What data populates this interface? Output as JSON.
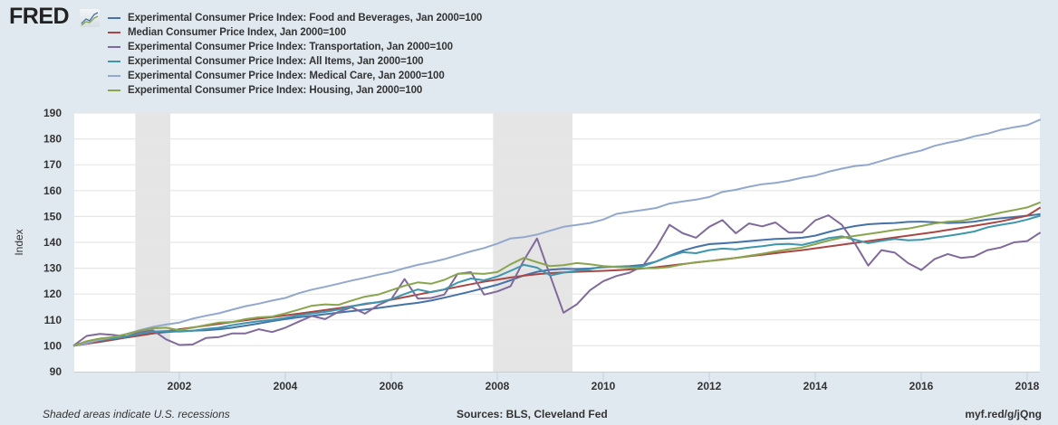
{
  "brand": {
    "logo_text": "FRED",
    "logo_icon": "line-chart-icon"
  },
  "footer": {
    "note": "Shaded areas indicate U.S. recessions",
    "sources": "Sources: BLS, Cleveland Fed",
    "short_url": "myf.red/g/jQng"
  },
  "chart_data": {
    "type": "line",
    "title": "",
    "xlabel": "",
    "ylabel": "Index",
    "xlim": [
      2000.0,
      2018.25
    ],
    "ylim": [
      90,
      190
    ],
    "x_ticks": [
      2002,
      2004,
      2006,
      2008,
      2010,
      2012,
      2014,
      2016,
      2018
    ],
    "y_ticks": [
      90,
      100,
      110,
      120,
      130,
      140,
      150,
      160,
      170,
      180,
      190
    ],
    "grid": true,
    "legend": "top-left",
    "recessions": [
      [
        2001.17,
        2001.83
      ],
      [
        2007.92,
        2009.42
      ]
    ],
    "x": [
      2000.0,
      2000.25,
      2000.5,
      2000.75,
      2001.0,
      2001.25,
      2001.5,
      2001.75,
      2002.0,
      2002.25,
      2002.5,
      2002.75,
      2003.0,
      2003.25,
      2003.5,
      2003.75,
      2004.0,
      2004.25,
      2004.5,
      2004.75,
      2005.0,
      2005.25,
      2005.5,
      2005.75,
      2006.0,
      2006.25,
      2006.5,
      2006.75,
      2007.0,
      2007.25,
      2007.5,
      2007.75,
      2008.0,
      2008.25,
      2008.5,
      2008.75,
      2009.0,
      2009.25,
      2009.5,
      2009.75,
      2010.0,
      2010.25,
      2010.5,
      2010.75,
      2011.0,
      2011.25,
      2011.5,
      2011.75,
      2012.0,
      2012.25,
      2012.5,
      2012.75,
      2013.0,
      2013.25,
      2013.5,
      2013.75,
      2014.0,
      2014.25,
      2014.5,
      2014.75,
      2015.0,
      2015.25,
      2015.5,
      2015.75,
      2016.0,
      2016.25,
      2016.5,
      2016.75,
      2017.0,
      2017.25,
      2017.5,
      2017.75,
      2018.0,
      2018.25
    ],
    "series": [
      {
        "name": "Experimental Consumer Price Index: Food and Beverages, Jan 2000=100",
        "color": "#4572a7",
        "values": [
          100,
          100.8,
          101.5,
          102.3,
          103.2,
          104.0,
          104.8,
          105.3,
          105.6,
          105.8,
          106.0,
          106.4,
          107.0,
          107.8,
          108.6,
          109.5,
          110.3,
          111.0,
          111.6,
          112.2,
          112.8,
          113.4,
          114.0,
          114.6,
          115.3,
          116.0,
          116.6,
          117.5,
          118.6,
          119.8,
          121.0,
          122.3,
          123.6,
          125.3,
          127.2,
          128.6,
          129.4,
          129.8,
          129.7,
          129.9,
          130.4,
          130.6,
          130.8,
          131.3,
          132.6,
          134.8,
          136.8,
          138.2,
          139.3,
          139.6,
          140.0,
          140.5,
          140.9,
          141.3,
          141.5,
          141.8,
          142.6,
          144.0,
          145.3,
          146.3,
          147.0,
          147.3,
          147.5,
          147.9,
          148.0,
          147.8,
          147.5,
          147.6,
          148.0,
          148.8,
          149.3,
          149.8,
          150.3,
          150.9
        ]
      },
      {
        "name": "Median Consumer Price Index, Jan 2000=100",
        "color": "#aa4643",
        "values": [
          100,
          100.8,
          101.6,
          102.4,
          103.2,
          104.0,
          104.8,
          105.6,
          106.4,
          107.1,
          107.8,
          108.5,
          109.2,
          109.9,
          110.5,
          111.1,
          111.8,
          112.4,
          113.1,
          113.8,
          114.5,
          115.3,
          116.1,
          116.9,
          117.8,
          118.8,
          119.8,
          120.8,
          121.8,
          122.8,
          123.8,
          124.8,
          125.6,
          126.4,
          127.1,
          127.7,
          128.1,
          128.4,
          128.6,
          128.8,
          129.0,
          129.2,
          129.5,
          129.9,
          130.4,
          131.0,
          131.6,
          132.2,
          132.8,
          133.4,
          134.0,
          134.6,
          135.2,
          135.8,
          136.4,
          137.0,
          137.7,
          138.4,
          139.1,
          139.8,
          140.5,
          141.2,
          141.9,
          142.6,
          143.3,
          144.0,
          144.8,
          145.6,
          146.4,
          147.2,
          148.1,
          149.2,
          150.3,
          153.5
        ]
      },
      {
        "name": "Experimental Consumer Price Index: Transportation, Jan 2000=100",
        "color": "#80699b",
        "values": [
          100,
          103.8,
          104.6,
          104.2,
          103.6,
          105.2,
          106.0,
          102.5,
          100.3,
          100.5,
          103.0,
          103.4,
          104.8,
          104.8,
          106.4,
          105.3,
          107.0,
          109.3,
          111.5,
          110.3,
          113.1,
          114.9,
          112.4,
          115.7,
          118.0,
          125.8,
          118.2,
          118.5,
          119.8,
          127.8,
          128.5,
          119.8,
          121.0,
          123.0,
          133.0,
          141.5,
          127.0,
          112.8,
          116.0,
          121.5,
          125.0,
          127.0,
          128.3,
          131.0,
          138.0,
          146.8,
          143.5,
          141.8,
          146.0,
          148.6,
          143.5,
          147.3,
          146.2,
          147.7,
          143.8,
          143.8,
          148.5,
          150.5,
          146.8,
          139.5,
          131.0,
          137.0,
          136.0,
          132.0,
          129.3,
          133.5,
          135.5,
          134.0,
          134.5,
          137.0,
          138.0,
          140.0,
          140.5,
          143.8
        ]
      },
      {
        "name": "Experimental Consumer Price Index: All Items, Jan 2000=100",
        "color": "#3d96ae",
        "values": [
          100,
          101.2,
          102.2,
          102.8,
          103.5,
          104.6,
          105.5,
          105.7,
          105.5,
          105.8,
          106.5,
          107.0,
          108.0,
          108.8,
          109.5,
          110.0,
          110.8,
          111.8,
          112.5,
          113.1,
          114.0,
          115.2,
          116.3,
          116.8,
          118.0,
          120.0,
          121.8,
          120.7,
          121.8,
          124.4,
          126.0,
          125.3,
          126.8,
          129.0,
          131.3,
          130.2,
          127.2,
          128.3,
          129.0,
          129.6,
          130.6,
          130.6,
          130.4,
          130.8,
          132.6,
          134.6,
          136.2,
          135.8,
          137.0,
          137.6,
          137.3,
          138.0,
          138.5,
          139.2,
          139.4,
          139.0,
          140.2,
          141.6,
          142.3,
          141.0,
          139.7,
          140.6,
          141.3,
          140.8,
          141.0,
          141.8,
          142.5,
          143.3,
          144.2,
          145.8,
          146.8,
          147.6,
          148.8,
          150.3
        ]
      },
      {
        "name": "Experimental Consumer Price Index: Medical Care, Jan 2000=100",
        "color": "#92a8cd",
        "values": [
          100,
          101.0,
          102.3,
          103.4,
          104.5,
          106.0,
          107.3,
          108.2,
          109.0,
          110.5,
          111.6,
          112.6,
          114.0,
          115.3,
          116.3,
          117.5,
          118.5,
          120.3,
          121.7,
          122.8,
          124.0,
          125.2,
          126.3,
          127.5,
          128.5,
          130.0,
          131.3,
          132.3,
          133.5,
          135.0,
          136.5,
          137.8,
          139.5,
          141.5,
          142.0,
          143.0,
          144.5,
          146.0,
          146.7,
          147.5,
          148.8,
          151.0,
          151.8,
          152.5,
          153.3,
          155.0,
          155.8,
          156.5,
          157.5,
          159.5,
          160.3,
          161.5,
          162.5,
          163.0,
          163.8,
          165.0,
          165.8,
          167.3,
          168.5,
          169.5,
          170.0,
          171.5,
          173.0,
          174.3,
          175.5,
          177.3,
          178.5,
          179.5,
          181.0,
          182.0,
          183.5,
          184.5,
          185.3,
          187.5
        ]
      },
      {
        "name": "Experimental Consumer Price Index: Housing, Jan 2000=100",
        "color": "#89a54e",
        "values": [
          100,
          101.8,
          102.8,
          103.4,
          104.5,
          105.8,
          106.8,
          107.0,
          106.0,
          107.0,
          108.0,
          109.0,
          109.2,
          110.3,
          111.0,
          111.3,
          112.5,
          114.0,
          115.5,
          116.0,
          115.8,
          117.5,
          119.0,
          119.8,
          121.5,
          123.2,
          124.5,
          124.0,
          125.5,
          127.8,
          128.0,
          127.8,
          128.5,
          131.5,
          134.0,
          132.3,
          130.8,
          131.2,
          132.0,
          131.5,
          130.8,
          130.5,
          130.3,
          130.0,
          130.0,
          130.5,
          131.5,
          132.3,
          132.8,
          133.3,
          134.0,
          134.8,
          135.6,
          136.5,
          137.3,
          138.0,
          139.3,
          140.7,
          141.8,
          142.5,
          143.2,
          144.0,
          144.8,
          145.3,
          146.3,
          147.3,
          148.0,
          148.3,
          149.3,
          150.3,
          151.5,
          152.5,
          153.5,
          155.5
        ]
      }
    ]
  }
}
